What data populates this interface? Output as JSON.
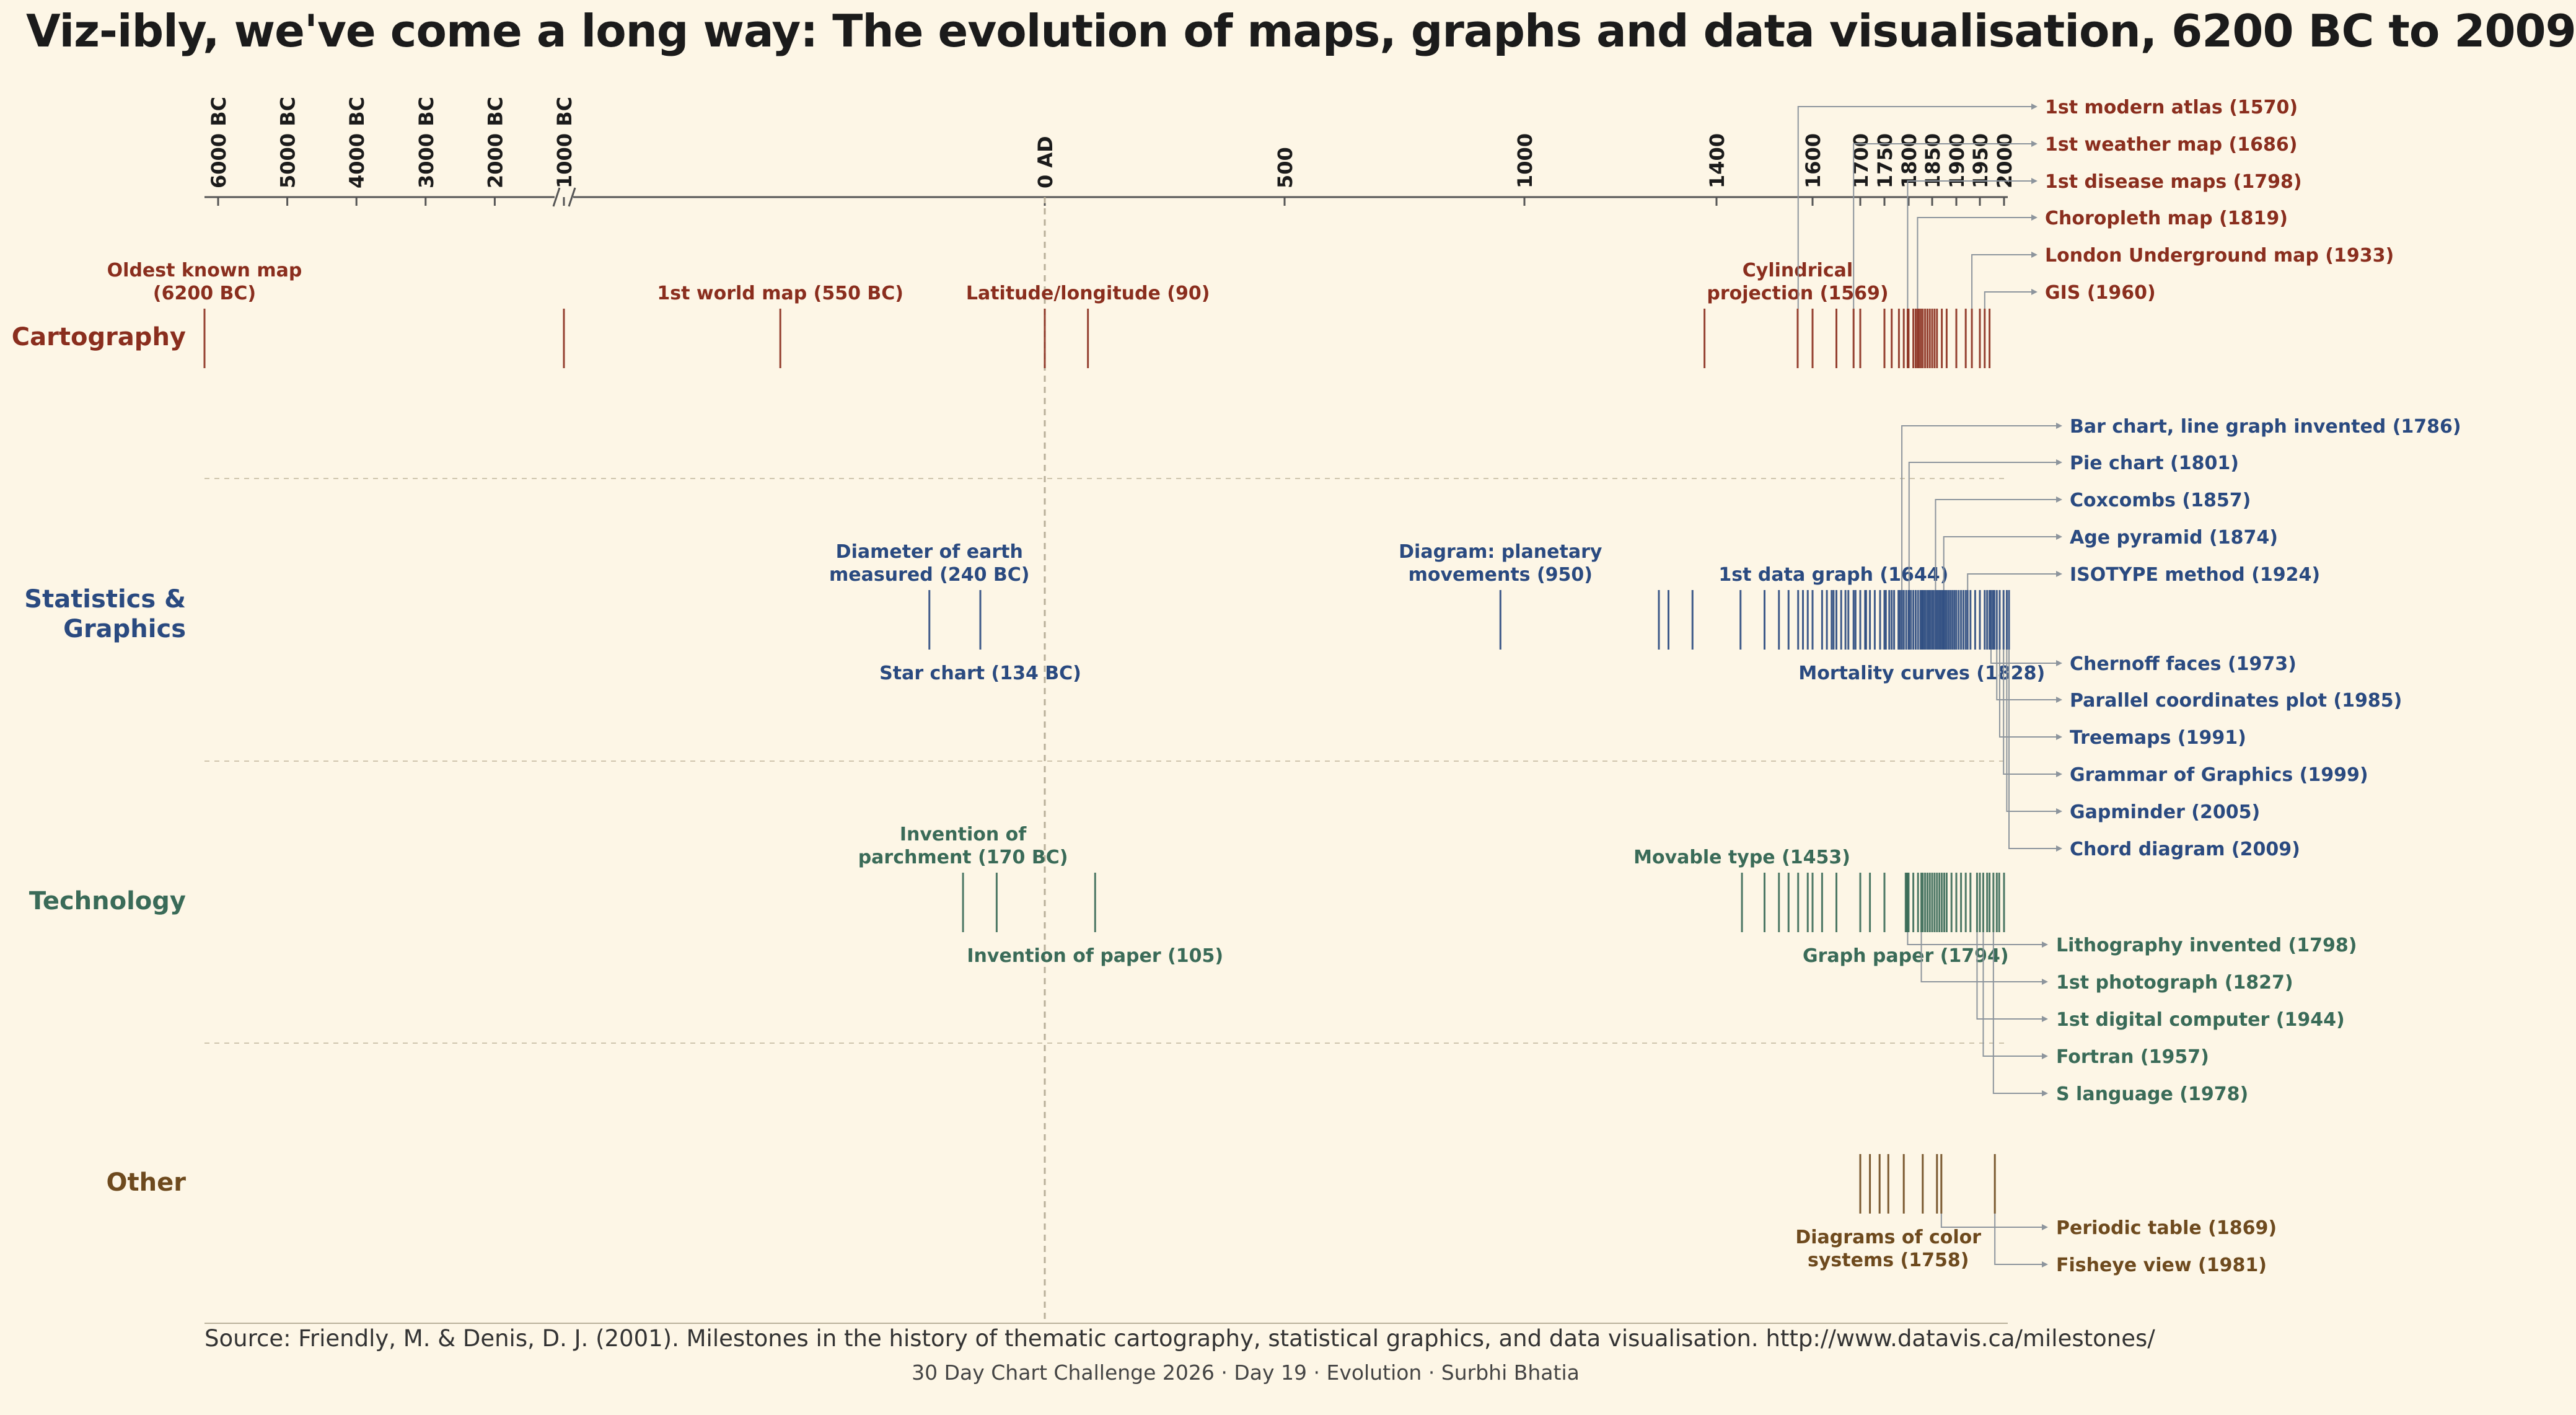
{
  "title": "Viz-ibly, we've come a long way: The evolution of maps, graphs and data visualisation, 6200 BC to 2009",
  "source": "Source: Friendly, M. & Denis, D. J. (2001). Milestones in the history of thematic cartography, statistical graphics, and data visualisation. http://www.datavis.ca/milestones/",
  "credit": "30 Day Chart Challenge 2026 · Day 19 · Evolution · Surbhi Bhatia",
  "chart_data": {
    "type": "timeline",
    "axis": {
      "scale": "piecewise (compressed before 1000 BC, linear to 1600, expanded after 1600)",
      "ticks": [
        {
          "year": -6000,
          "label": "6000 BC"
        },
        {
          "year": -5000,
          "label": "5000 BC"
        },
        {
          "year": -4000,
          "label": "4000 BC"
        },
        {
          "year": -3000,
          "label": "3000 BC"
        },
        {
          "year": -2000,
          "label": "2000 BC"
        },
        {
          "year": -1000,
          "label": "1000 BC"
        },
        {
          "year": 0,
          "label": "0 AD"
        },
        {
          "year": 500,
          "label": "500"
        },
        {
          "year": 1000,
          "label": "1000"
        },
        {
          "year": 1400,
          "label": "1400"
        },
        {
          "year": 1600,
          "label": "1600"
        },
        {
          "year": 1700,
          "label": "1700"
        },
        {
          "year": 1750,
          "label": "1750"
        },
        {
          "year": 1800,
          "label": "1800"
        },
        {
          "year": 1850,
          "label": "1850"
        },
        {
          "year": 1900,
          "label": "1900"
        },
        {
          "year": 1950,
          "label": "1950"
        },
        {
          "year": 2000,
          "label": "2000"
        }
      ]
    },
    "colors": {
      "Cartography": "#8a2e1e",
      "Statistics": "#2a4a80",
      "Technology": "#3a6b58",
      "Other": "#6e4a1e",
      "leader": "#8d959d",
      "axis": "#555555",
      "grid": "#cfc5ae"
    },
    "categories": [
      {
        "key": "Cartography",
        "label": "Cartography",
        "events": [
          -6200,
          -1000,
          -550,
          0,
          90,
          1375,
          1569,
          1600,
          1650,
          1686,
          1700,
          1750,
          1765,
          1780,
          1790,
          1798,
          1800,
          1810,
          1815,
          1819,
          1822,
          1826,
          1830,
          1835,
          1840,
          1845,
          1850,
          1855,
          1860,
          1870,
          1880,
          1900,
          1920,
          1933,
          1950,
          1960,
          1970
        ],
        "labels": [
          {
            "text": "Oldest known map",
            "text2": "(6200 BC)",
            "year": -6200
          },
          {
            "text": "1st world map (550 BC)",
            "year": -550
          },
          {
            "text": "Latitude/longitude (90)",
            "year": 90
          },
          {
            "text": "Cylindrical",
            "text2": "projection (1569)",
            "year": 1569
          }
        ],
        "callouts": [
          {
            "text": "1st modern atlas (1570)",
            "year": 1570
          },
          {
            "text": "1st weather map (1686)",
            "year": 1686
          },
          {
            "text": "1st disease maps (1798)",
            "year": 1798
          },
          {
            "text": "Choropleth map (1819)",
            "year": 1819
          },
          {
            "text": "London Underground map (1933)",
            "year": 1933
          },
          {
            "text": "GIS (1960)",
            "year": 1960
          }
        ]
      },
      {
        "key": "Statistics",
        "label": "Statistics &",
        "label2": "Graphics",
        "events": [
          -240,
          -134,
          950,
          1280,
          1300,
          1350,
          1450,
          1500,
          1530,
          1550,
          1570,
          1580,
          1590,
          1600,
          1620,
          1630,
          1640,
          1644,
          1650,
          1660,
          1669,
          1675,
          1686,
          1690,
          1700,
          1710,
          1712,
          1720,
          1730,
          1741,
          1750,
          1753,
          1760,
          1765,
          1770,
          1779,
          1782,
          1786,
          1790,
          1795,
          1800,
          1801,
          1805,
          1810,
          1815,
          1820,
          1825,
          1828,
          1830,
          1833,
          1836,
          1840,
          1843,
          1846,
          1850,
          1853,
          1857,
          1860,
          1863,
          1866,
          1869,
          1872,
          1874,
          1877,
          1880,
          1884,
          1888,
          1892,
          1896,
          1900,
          1905,
          1910,
          1915,
          1920,
          1924,
          1930,
          1940,
          1950,
          1960,
          1965,
          1970,
          1973,
          1977,
          1980,
          1985,
          1991,
          1999,
          2005,
          2009
        ],
        "labels": [
          {
            "text": "Diameter of earth",
            "text2": "measured (240 BC)",
            "year": -240
          },
          {
            "text": "Star chart (134 BC)",
            "year": -134,
            "below": true
          },
          {
            "text": "Diagram: planetary",
            "text2": "movements (950)",
            "year": 950
          },
          {
            "text": "1st data graph (1644)",
            "year": 1644
          },
          {
            "text": "Mortality curves (1828)",
            "year": 1828,
            "below": true
          }
        ],
        "callouts": [
          {
            "text": "Bar chart, line graph invented (1786)",
            "year": 1786
          },
          {
            "text": "Pie chart (1801)",
            "year": 1801
          },
          {
            "text": "Coxcombs (1857)",
            "year": 1857
          },
          {
            "text": "Age pyramid (1874)",
            "year": 1874
          },
          {
            "text": "ISOTYPE method (1924)",
            "year": 1924
          },
          {
            "text": "Chernoff faces (1973)",
            "year": 1973
          },
          {
            "text": "Parallel coordinates plot (1985)",
            "year": 1985
          },
          {
            "text": "Treemaps (1991)",
            "year": 1991
          },
          {
            "text": "Grammar of Graphics (1999)",
            "year": 1999
          },
          {
            "text": "Gapminder (2005)",
            "year": 2005
          },
          {
            "text": "Chord diagram (2009)",
            "year": 2009
          }
        ]
      },
      {
        "key": "Technology",
        "label": "Technology",
        "events": [
          -170,
          -100,
          105,
          1453,
          1500,
          1530,
          1550,
          1570,
          1590,
          1600,
          1620,
          1650,
          1700,
          1720,
          1750,
          1794,
          1796,
          1798,
          1800,
          1810,
          1820,
          1827,
          1830,
          1835,
          1840,
          1845,
          1850,
          1855,
          1860,
          1865,
          1870,
          1875,
          1880,
          1890,
          1900,
          1910,
          1920,
          1930,
          1944,
          1950,
          1957,
          1965,
          1970,
          1978,
          1985,
          1990,
          2000
        ],
        "labels": [
          {
            "text": "Invention of",
            "text2": "parchment (170 BC)",
            "year": -170
          },
          {
            "text": "Invention of paper (105)",
            "year": 105,
            "below": true
          },
          {
            "text": "Movable type (1453)",
            "year": 1453
          },
          {
            "text": "Graph paper (1794)",
            "year": 1794,
            "below": true
          }
        ],
        "callouts": [
          {
            "text": "Lithography invented (1798)",
            "year": 1798
          },
          {
            "text": "1st photograph (1827)",
            "year": 1827
          },
          {
            "text": "1st digital computer (1944)",
            "year": 1944
          },
          {
            "text": "Fortran (1957)",
            "year": 1957
          },
          {
            "text": "S language (1978)",
            "year": 1978
          }
        ]
      },
      {
        "key": "Other",
        "label": "Other",
        "events": [
          1700,
          1720,
          1740,
          1758,
          1790,
          1830,
          1860,
          1869,
          1981
        ],
        "labels": [
          {
            "text": "Diagrams of color",
            "text2": "systems (1758)",
            "year": 1758,
            "below": true
          }
        ],
        "callouts": [
          {
            "text": "Periodic table (1869)",
            "year": 1869
          },
          {
            "text": "Fisheye view (1981)",
            "year": 1981
          }
        ]
      }
    ]
  }
}
